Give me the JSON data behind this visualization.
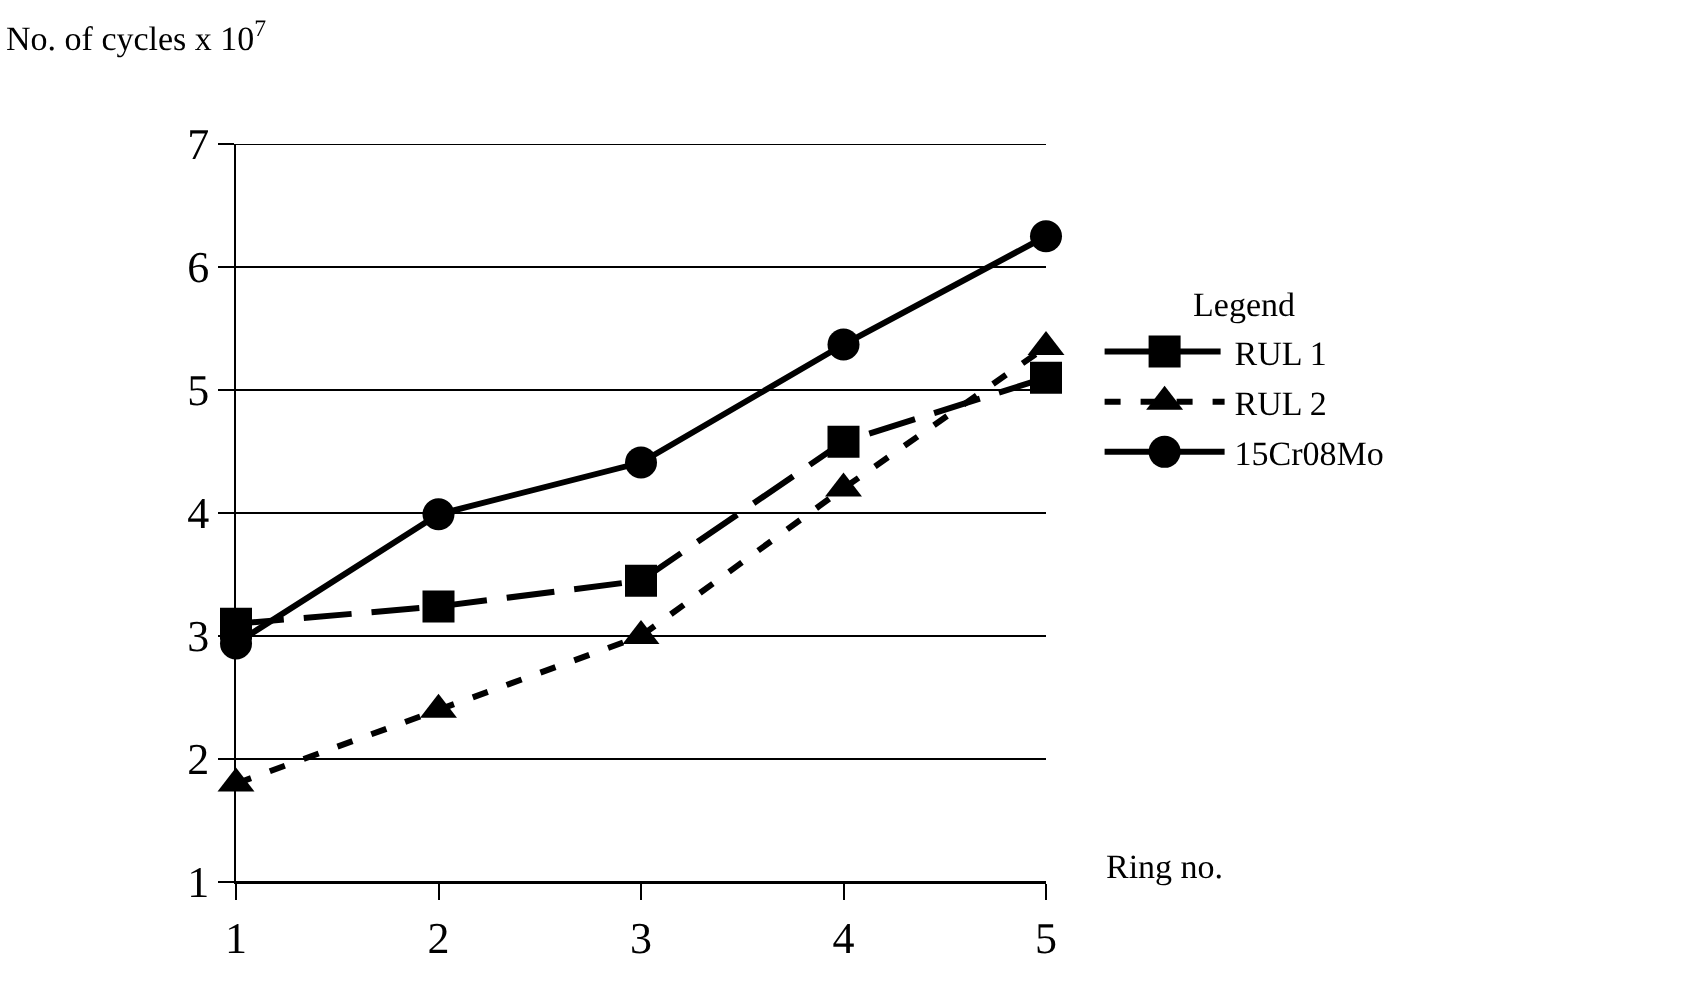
{
  "chart_data": {
    "type": "line",
    "ylabel": "No. of cycles x 10$^{7}$",
    "xlabel": "Ring no.",
    "legend_title": "Legend",
    "x": [
      1,
      2,
      3,
      4,
      5
    ],
    "xlim": [
      1,
      5
    ],
    "xticks": [
      1,
      2,
      3,
      4,
      5
    ],
    "ylim": [
      1,
      7
    ],
    "yticks": [
      1,
      2,
      3,
      4,
      5,
      6,
      7
    ],
    "grid": "y",
    "legend": "right",
    "series": [
      {
        "name": "RUL 1",
        "color": "#000000",
        "marker": "square",
        "line_style": "dashed",
        "values": [
          3.1,
          3.24,
          3.45,
          4.58,
          5.1
        ]
      },
      {
        "name": "RUL 2",
        "color": "#000000",
        "marker": "triangle",
        "line_style": "dotted",
        "values": [
          1.8,
          2.4,
          3.0,
          4.2,
          5.35
        ]
      },
      {
        "name": "15Cr08Mo",
        "color": "#000000",
        "marker": "circle",
        "line_style": "solid",
        "values": [
          2.94,
          3.99,
          4.41,
          5.37,
          6.25
        ]
      }
    ]
  }
}
